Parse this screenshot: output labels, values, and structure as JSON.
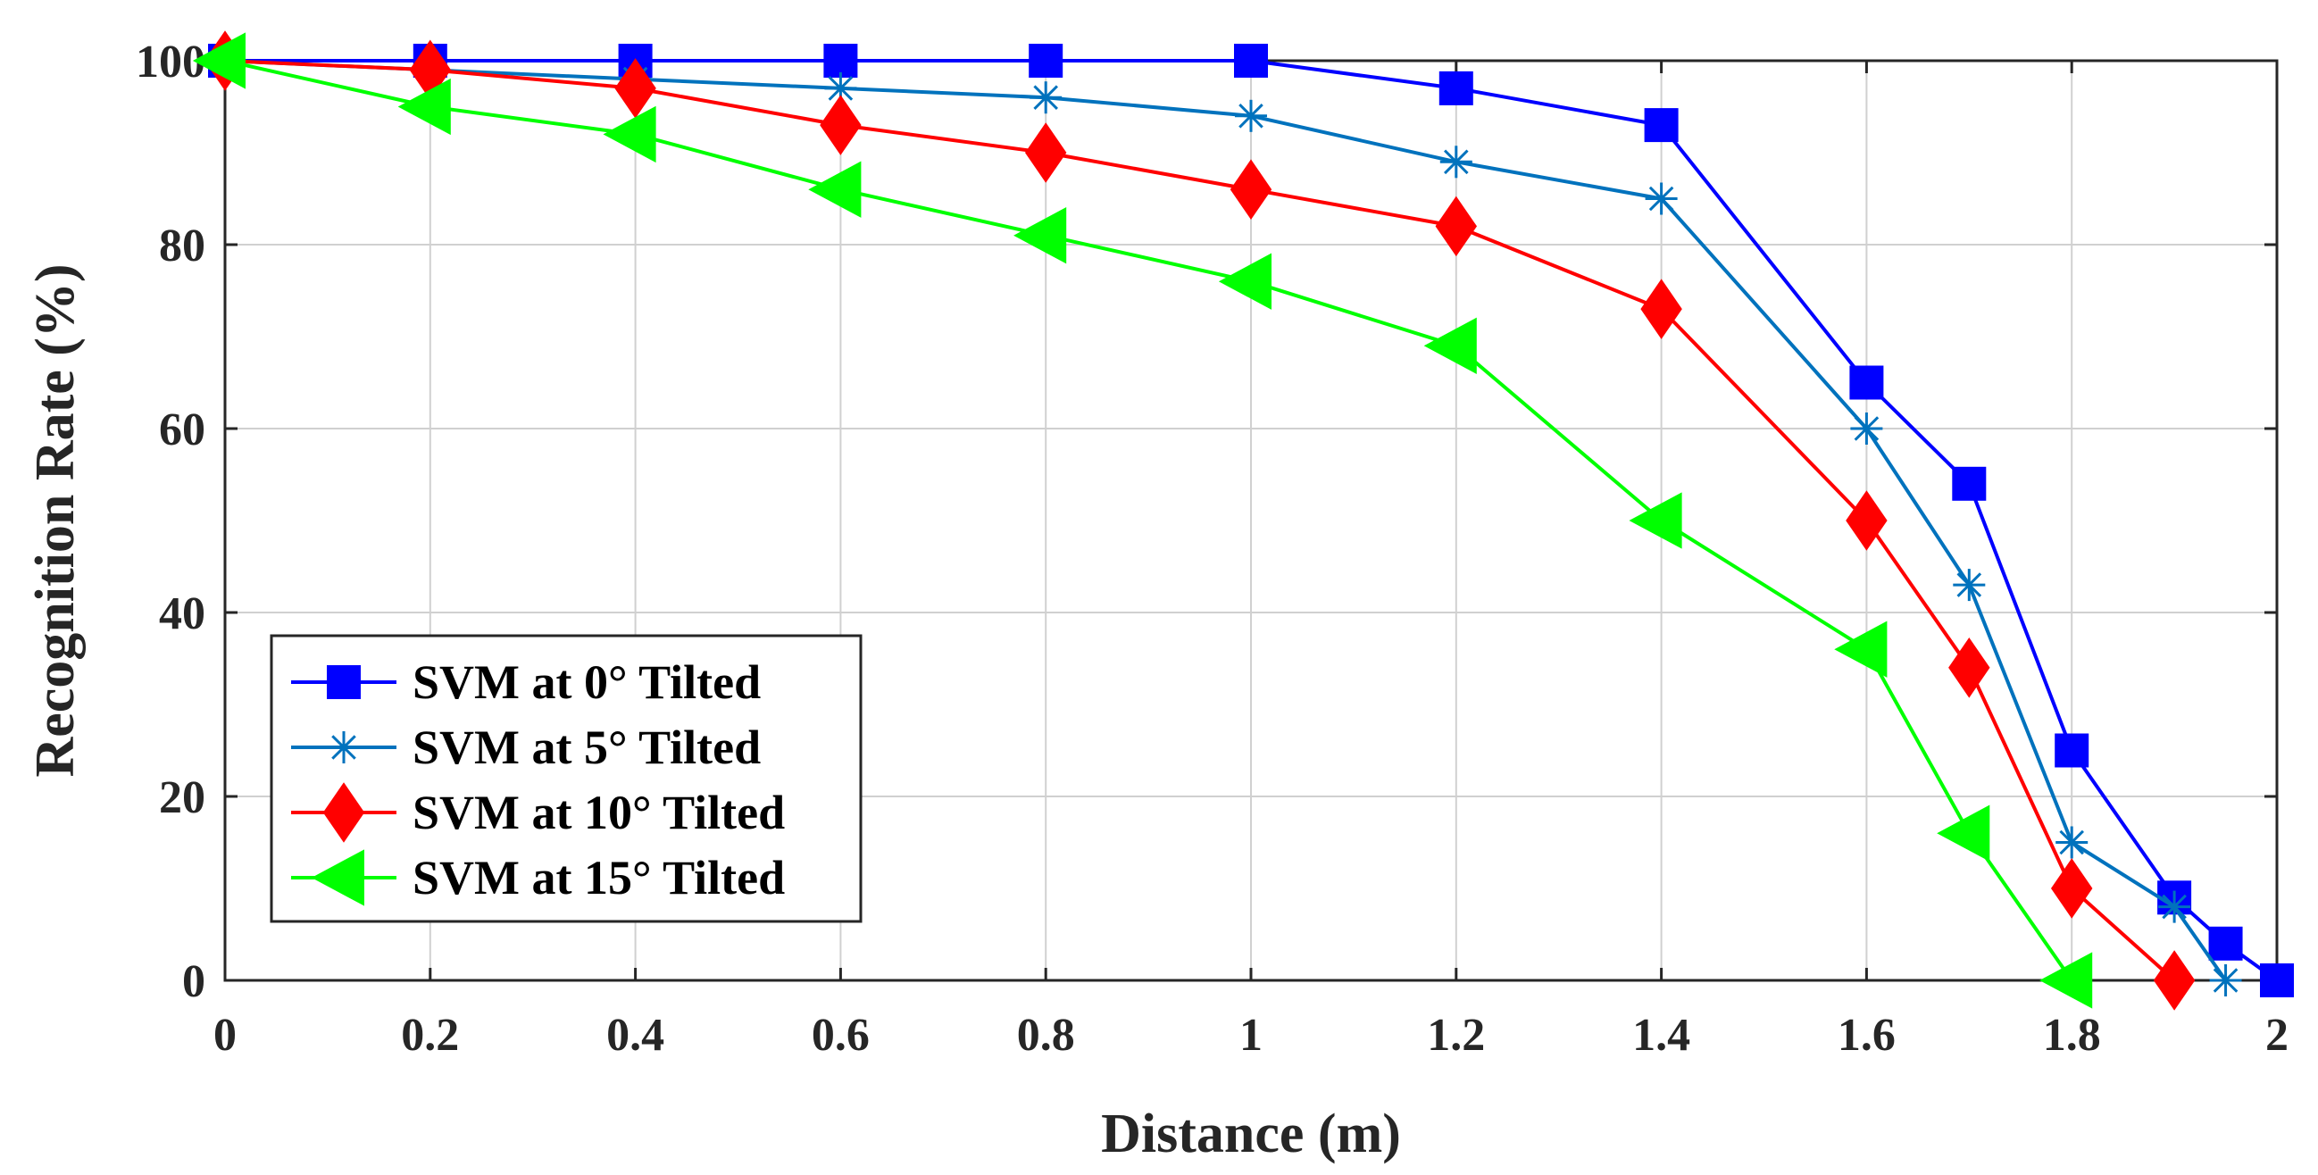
{
  "chart_data": {
    "type": "line",
    "title": "",
    "xlabel": "Distance (m)",
    "ylabel": "Recognition Rate (%)",
    "xlim": [
      0,
      2
    ],
    "ylim": [
      0,
      100
    ],
    "grid": true,
    "legend_position": "bottom-left",
    "xticks": [
      0,
      0.2,
      0.4,
      0.6,
      0.8,
      1,
      1.2,
      1.4,
      1.6,
      1.8,
      2
    ],
    "xtick_labels": [
      "0",
      "0.2",
      "0.4",
      "0.6",
      "0.8",
      "1",
      "1.2",
      "1.4",
      "1.6",
      "1.8",
      "2"
    ],
    "yticks": [
      0,
      20,
      40,
      60,
      80,
      100
    ],
    "ytick_labels": [
      "0",
      "20",
      "40",
      "60",
      "80",
      "100"
    ],
    "series": [
      {
        "name": "SVM at 0° Tilted",
        "color": "#0000ff",
        "marker": "square",
        "x": [
          0,
          0.2,
          0.4,
          0.6,
          0.8,
          1,
          1.2,
          1.4,
          1.6,
          1.7,
          1.8,
          1.9,
          1.95,
          2
        ],
        "y": [
          100,
          100,
          100,
          100,
          100,
          100,
          97,
          93,
          65,
          54,
          25,
          9,
          4,
          0
        ]
      },
      {
        "name": "SVM at 5° Tilted",
        "color": "#0072bd",
        "marker": "asterisk",
        "x": [
          0,
          0.2,
          0.4,
          0.6,
          0.8,
          1,
          1.2,
          1.4,
          1.6,
          1.7,
          1.8,
          1.9,
          1.95
        ],
        "y": [
          100,
          99,
          98,
          97,
          96,
          94,
          89,
          85,
          60,
          43,
          15,
          8,
          0
        ]
      },
      {
        "name": "SVM at 10° Tilted",
        "color": "#ff0000",
        "marker": "diamond",
        "x": [
          0,
          0.2,
          0.4,
          0.6,
          0.8,
          1,
          1.2,
          1.4,
          1.6,
          1.7,
          1.8,
          1.9
        ],
        "y": [
          100,
          99,
          97,
          93,
          90,
          86,
          82,
          73,
          50,
          34,
          10,
          0
        ]
      },
      {
        "name": "SVM at 15° Tilted",
        "color": "#00ff00",
        "marker": "triangle-left",
        "x": [
          0,
          0.2,
          0.4,
          0.6,
          0.8,
          1,
          1.2,
          1.4,
          1.6,
          1.7,
          1.8
        ],
        "y": [
          100,
          95,
          92,
          86,
          81,
          76,
          69,
          50,
          36,
          16,
          0
        ]
      }
    ]
  }
}
